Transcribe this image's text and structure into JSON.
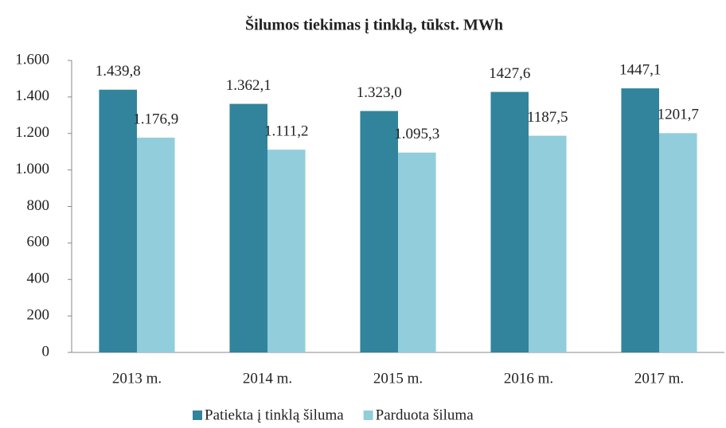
{
  "chart_data": {
    "type": "bar",
    "title": "Šilumos tiekimas į tinklą, tūkst. MWh",
    "categories": [
      "2013 m.",
      "2014 m.",
      "2015 m.",
      "2016 m.",
      "2017 m."
    ],
    "series": [
      {
        "name": "Patiekta į tinklą šiluma",
        "color": "#31849b",
        "values": [
          1439.8,
          1362.1,
          1323.0,
          1427.6,
          1447.1
        ],
        "value_labels": [
          "1.439,8",
          "1.362,1",
          "1.323,0",
          "1427,6",
          "1447,1"
        ]
      },
      {
        "name": "Parduota šiluma",
        "color": "#92cddc",
        "values": [
          1176.9,
          1111.2,
          1095.3,
          1187.5,
          1201.7
        ],
        "value_labels": [
          "1.176,9",
          "1.111,2",
          "1.095,3",
          "1187,5",
          "1201,7"
        ]
      }
    ],
    "ylim": [
      0,
      1600
    ],
    "yticks": [
      0,
      200,
      400,
      600,
      800,
      {
        "value": 1000,
        "label": "1.000"
      },
      {
        "value": 1200,
        "label": "1.200"
      },
      {
        "value": 1400,
        "label": "1.400"
      },
      {
        "value": 1600,
        "label": "1.600"
      }
    ],
    "grid": false,
    "legend": "bottom"
  }
}
